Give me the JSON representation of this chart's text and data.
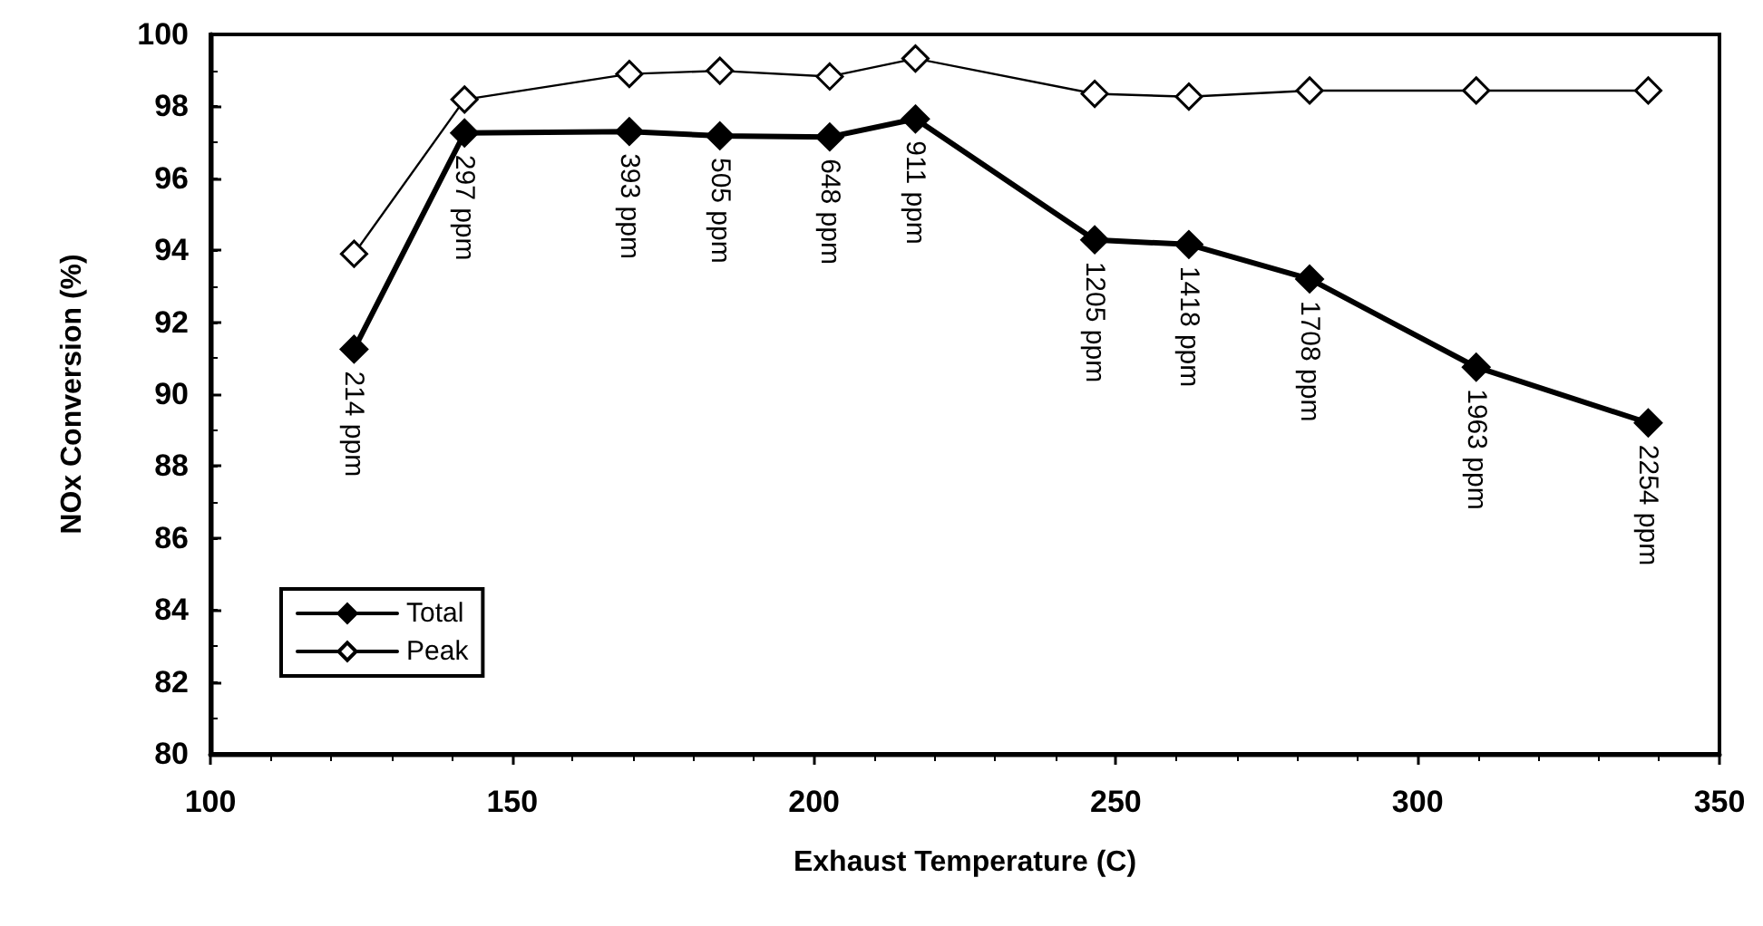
{
  "chart_data": {
    "type": "line",
    "xlabel": "Exhaust Temperature (C)",
    "ylabel": "NOx Conversion (%)",
    "xlim": [
      100,
      350
    ],
    "xticks": [
      100,
      150,
      200,
      250,
      300,
      350
    ],
    "ylim": [
      80,
      100
    ],
    "yticks": [
      80,
      82,
      84,
      86,
      88,
      90,
      92,
      94,
      96,
      98,
      100
    ],
    "grid": false,
    "legend": "bottom left",
    "marker": "diamond",
    "line_style": "solid",
    "series": [
      {
        "name": "Total",
        "color": "#000000",
        "x": [
          123.8,
          142.1,
          169.4,
          184.4,
          202.6,
          216.8,
          246.5,
          262.1,
          282.1,
          309.7,
          338.2
        ],
        "values": [
          91.25,
          97.26,
          97.3,
          97.18,
          97.15,
          97.65,
          94.29,
          94.16,
          93.2,
          90.75,
          89.2
        ]
      },
      {
        "name": "Peak",
        "color": "#000000",
        "x": [
          123.8,
          142.1,
          169.4,
          184.4,
          202.6,
          216.8,
          246.5,
          262.1,
          282.1,
          309.7,
          338.2
        ],
        "values": [
          93.9,
          98.19,
          98.9,
          98.99,
          98.83,
          99.33,
          98.35,
          98.27,
          98.44,
          98.44,
          98.44
        ]
      }
    ],
    "annotations": [
      {
        "text": "214 ppm",
        "x": 123.8,
        "y": 91.25
      },
      {
        "text": "297 ppm",
        "x": 142.1,
        "y": 97.26
      },
      {
        "text": "393 ppm",
        "x": 169.4,
        "y": 97.3
      },
      {
        "text": "505 ppm",
        "x": 184.4,
        "y": 97.18
      },
      {
        "text": "648 ppm",
        "x": 202.6,
        "y": 97.15
      },
      {
        "text": "911 ppm",
        "x": 216.8,
        "y": 97.65
      },
      {
        "text": "1205 ppm",
        "x": 246.5,
        "y": 94.29
      },
      {
        "text": "1418 ppm",
        "x": 262.1,
        "y": 94.16
      },
      {
        "text": "1708 ppm",
        "x": 282.1,
        "y": 93.2
      },
      {
        "text": "1963 ppm",
        "x": 309.7,
        "y": 90.75
      },
      {
        "text": "2254 ppm",
        "x": 338.2,
        "y": 89.2
      }
    ]
  }
}
